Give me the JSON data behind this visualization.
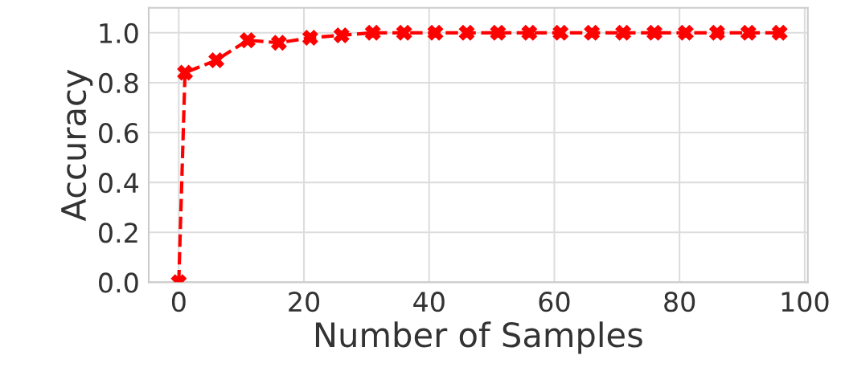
{
  "chart_data": {
    "type": "line",
    "xlabel": "Number of Samples",
    "ylabel": "Accuracy",
    "x": [
      0,
      1,
      6,
      11,
      16,
      21,
      26,
      31,
      36,
      41,
      46,
      51,
      56,
      61,
      66,
      71,
      76,
      81,
      86,
      91,
      96
    ],
    "series": [
      {
        "color": "#ff0000",
        "values": [
          0.0,
          0.84,
          0.89,
          0.97,
          0.96,
          0.98,
          0.99,
          1.0,
          1.0,
          1.0,
          1.0,
          1.0,
          1.0,
          1.0,
          1.0,
          1.0,
          1.0,
          1.0,
          1.0,
          1.0,
          1.0
        ]
      }
    ],
    "xlim": [
      -4.8,
      100.5
    ],
    "ylim": [
      0.0,
      1.1
    ],
    "xticks": [
      0,
      20,
      40,
      60,
      80,
      100
    ],
    "yticks": [
      {
        "value": 0,
        "label": "0.0"
      },
      0.2,
      0.4,
      0.6,
      0.8,
      {
        "value": 1,
        "label": "1.0"
      }
    ],
    "grid": true,
    "marker": "cross",
    "line_style": "dashed"
  }
}
